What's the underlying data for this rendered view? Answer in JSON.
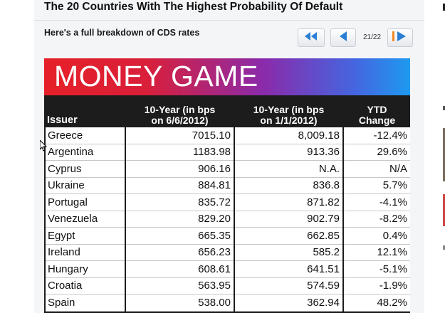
{
  "page": {
    "title": "The 20 Countries With The Highest Probability Of Default",
    "subtitle": "Here's a full breakdown of CDS rates"
  },
  "pager": {
    "count": "21/22",
    "first_icon": "rewind-icon",
    "prev_icon": "prev-arrow-icon",
    "next_icon": "next-arrow-icon"
  },
  "banner": {
    "text": "MONEY GAME",
    "colors": [
      "#e62028",
      "#8a2bab",
      "#1e9af0"
    ]
  },
  "table": {
    "headers": {
      "issuer": "Issuer",
      "col1_line1": "10-Year (in bps",
      "col1_line2": "on 6/6/2012)",
      "col2_line1": "10-Year (in bps",
      "col2_line2": "on 1/1/2012)",
      "col3_line1": "YTD",
      "col3_line2": "Change"
    },
    "rows": [
      {
        "issuer": "Greece",
        "jun": "7015.10",
        "jan": "8,009.18",
        "ytd": "-12.4%"
      },
      {
        "issuer": "Argentina",
        "jun": "1183.98",
        "jan": "913.36",
        "ytd": "29.6%"
      },
      {
        "issuer": "Cyprus",
        "jun": "906.16",
        "jan": "N.A.",
        "ytd": "N/A"
      },
      {
        "issuer": "Ukraine",
        "jun": "884.81",
        "jan": "836.8",
        "ytd": "5.7%"
      },
      {
        "issuer": "Portugal",
        "jun": "835.72",
        "jan": "871.82",
        "ytd": "-4.1%"
      },
      {
        "issuer": "Venezuela",
        "jun": "829.20",
        "jan": "902.79",
        "ytd": "-8.2%"
      },
      {
        "issuer": "Egypt",
        "jun": "665.35",
        "jan": "662.85",
        "ytd": "0.4%"
      },
      {
        "issuer": "Ireland",
        "jun": "656.23",
        "jan": "585.2",
        "ytd": "12.1%"
      },
      {
        "issuer": "Hungary",
        "jun": "608.61",
        "jan": "641.51",
        "ytd": "-5.1%"
      },
      {
        "issuer": "Croatia",
        "jun": "563.95",
        "jan": "574.59",
        "ytd": "-1.9%"
      },
      {
        "issuer": "Spain",
        "jun": "538.00",
        "jan": "362.94",
        "ytd": "48.2%"
      }
    ]
  },
  "colors": {
    "accent_blue": "#2a7fd4",
    "table_border": "#1c1c1c"
  }
}
